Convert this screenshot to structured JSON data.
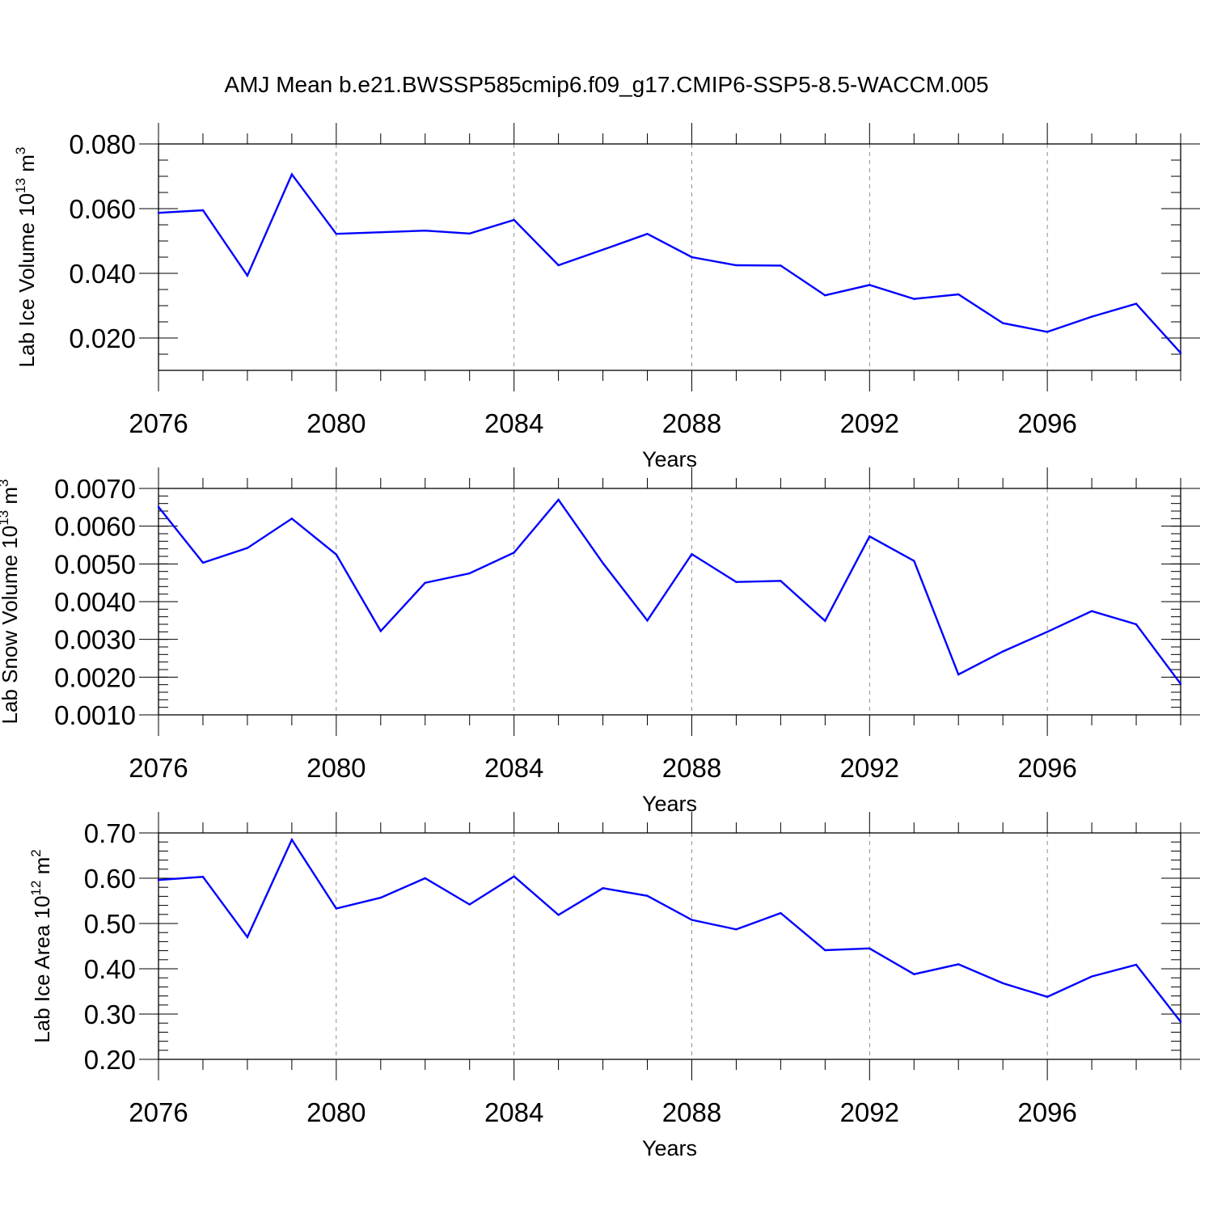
{
  "title": "AMJ Mean b.e21.BWSSP585cmip6.f09_g17.CMIP6-SSP5-8.5-WACCM.005",
  "colors": {
    "line": "#0000ff",
    "axes": "#000000",
    "grid": "#000000"
  },
  "chart_data": [
    {
      "type": "line",
      "xlabel": "Years",
      "ylabel": {
        "prefix": "Lab Ice Volume 10",
        "exp": "13",
        "unit": " m",
        "unit_exp": "3"
      },
      "xlim": [
        2076,
        2099
      ],
      "ylim": [
        0.01,
        0.08
      ],
      "xticks": [
        2076,
        2080,
        2084,
        2088,
        2092,
        2096
      ],
      "xtick_labels": [
        "2076",
        "2080",
        "2084",
        "2088",
        "2092",
        "2096"
      ],
      "yticks": [
        0.02,
        0.04,
        0.06,
        0.08
      ],
      "ytick_labels": [
        "0.020",
        "0.040",
        "0.060",
        "0.080"
      ],
      "yminor": 0.005,
      "grid": "vertical dashed at major x ticks",
      "x": [
        2076,
        2077,
        2078,
        2079,
        2080,
        2081,
        2082,
        2083,
        2084,
        2085,
        2086,
        2087,
        2088,
        2089,
        2090,
        2091,
        2092,
        2093,
        2094,
        2095,
        2096,
        2097,
        2098,
        2099
      ],
      "y": [
        0.0587,
        0.0595,
        0.0393,
        0.0706,
        0.0522,
        0.0527,
        0.0532,
        0.0523,
        0.0565,
        0.0425,
        0.0473,
        0.0522,
        0.045,
        0.0425,
        0.0424,
        0.0332,
        0.0364,
        0.0321,
        0.0335,
        0.0246,
        0.0219,
        0.0266,
        0.0306,
        0.0154
      ]
    },
    {
      "type": "line",
      "xlabel": "Years",
      "ylabel": {
        "prefix": "Lab Snow Volume 10",
        "exp": "13",
        "unit": " m",
        "unit_exp": "3"
      },
      "xlim": [
        2076,
        2099
      ],
      "ylim": [
        0.001,
        0.007
      ],
      "xticks": [
        2076,
        2080,
        2084,
        2088,
        2092,
        2096
      ],
      "xtick_labels": [
        "2076",
        "2080",
        "2084",
        "2088",
        "2092",
        "2096"
      ],
      "yticks": [
        0.001,
        0.002,
        0.003,
        0.004,
        0.005,
        0.006,
        0.007
      ],
      "ytick_labels": [
        "0.0010",
        "0.0020",
        "0.0030",
        "0.0040",
        "0.0050",
        "0.0060",
        "0.0070"
      ],
      "yminor": 0.0002,
      "grid": "vertical dashed at major x ticks",
      "x": [
        2076,
        2077,
        2078,
        2079,
        2080,
        2081,
        2082,
        2083,
        2084,
        2085,
        2086,
        2087,
        2088,
        2089,
        2090,
        2091,
        2092,
        2093,
        2094,
        2095,
        2096,
        2097,
        2098,
        2099
      ],
      "y": [
        0.00651,
        0.00503,
        0.00542,
        0.0062,
        0.00525,
        0.00322,
        0.0045,
        0.00475,
        0.0053,
        0.0067,
        0.00502,
        0.0035,
        0.00526,
        0.00452,
        0.00455,
        0.00349,
        0.00573,
        0.00508,
        0.00207,
        0.00268,
        0.0032,
        0.00375,
        0.0034,
        0.00182
      ]
    },
    {
      "type": "line",
      "xlabel": "Years",
      "ylabel": {
        "prefix": "Lab Ice Area 10",
        "exp": "12",
        "unit": " m",
        "unit_exp": "2"
      },
      "xlim": [
        2076,
        2099
      ],
      "ylim": [
        0.2,
        0.7
      ],
      "xticks": [
        2076,
        2080,
        2084,
        2088,
        2092,
        2096
      ],
      "xtick_labels": [
        "2076",
        "2080",
        "2084",
        "2088",
        "2092",
        "2096"
      ],
      "yticks": [
        0.2,
        0.3,
        0.4,
        0.5,
        0.6,
        0.7
      ],
      "ytick_labels": [
        "0.20",
        "0.30",
        "0.40",
        "0.50",
        "0.60",
        "0.70"
      ],
      "yminor": 0.02,
      "grid": "vertical dashed at major x ticks",
      "x": [
        2076,
        2077,
        2078,
        2079,
        2080,
        2081,
        2082,
        2083,
        2084,
        2085,
        2086,
        2087,
        2088,
        2089,
        2090,
        2091,
        2092,
        2093,
        2094,
        2095,
        2096,
        2097,
        2098,
        2099
      ],
      "y": [
        0.596,
        0.603,
        0.47,
        0.685,
        0.533,
        0.557,
        0.6,
        0.542,
        0.604,
        0.519,
        0.578,
        0.561,
        0.508,
        0.487,
        0.523,
        0.441,
        0.445,
        0.388,
        0.41,
        0.368,
        0.338,
        0.383,
        0.409,
        0.283
      ]
    }
  ]
}
